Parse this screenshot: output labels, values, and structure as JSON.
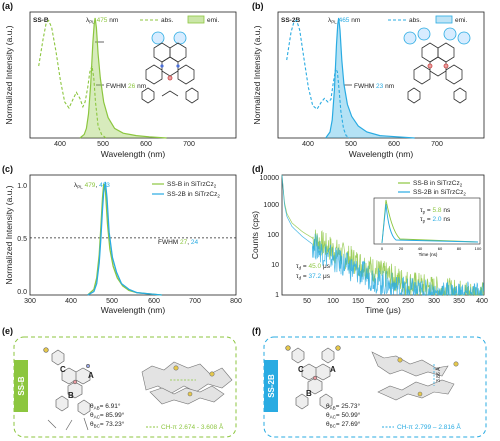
{
  "colors": {
    "green": "#8cc63f",
    "blue": "#29abe2",
    "teal": "#1fa2a6",
    "dark": "#222222"
  },
  "icons": [
    "molecule-structure-icon",
    "crystal-packing-icon"
  ],
  "chart_data": [
    {
      "panel": "(a)",
      "type": "line",
      "sample": "SS-B",
      "lambda_pre": "λ",
      "lambda_sub": "PL",
      "lambda_value": "475",
      "lambda_unit": "nm",
      "fwhm_pre": "FWHM",
      "fwhm_value": "26",
      "fwhm_unit": "nm",
      "legend": [
        "abs.",
        "emi."
      ],
      "xlabel": "Wavelength (nm)",
      "ylabel": "Normalized Intensity (a.u.)",
      "xlim": [
        325,
        800
      ],
      "ylim": [
        0,
        1.05
      ],
      "xticks": [
        "400",
        "500",
        "600",
        "700"
      ],
      "series": [
        {
          "name": "abs.",
          "style": "dashed",
          "x": [
            345,
            355,
            362,
            368,
            375,
            385,
            395,
            405,
            415,
            425,
            432,
            440,
            447,
            452,
            458,
            463,
            468,
            472,
            476,
            482,
            490,
            500
          ],
          "y": [
            0.6,
            0.82,
            0.95,
            0.98,
            0.92,
            0.72,
            0.48,
            0.3,
            0.25,
            0.33,
            0.38,
            0.33,
            0.26,
            0.3,
            0.42,
            0.55,
            0.6,
            0.5,
            0.3,
            0.1,
            0.03,
            0.0
          ]
        },
        {
          "name": "emi.",
          "style": "filled",
          "x": [
            440,
            450,
            455,
            460,
            465,
            470,
            473,
            475,
            478,
            482,
            487,
            495,
            505,
            520,
            540,
            570,
            600,
            640
          ],
          "y": [
            0.0,
            0.03,
            0.08,
            0.2,
            0.45,
            0.8,
            0.95,
            1.0,
            0.92,
            0.7,
            0.5,
            0.3,
            0.17,
            0.08,
            0.04,
            0.02,
            0.01,
            0.0
          ]
        }
      ]
    },
    {
      "panel": "(b)",
      "type": "line",
      "sample": "SS-2B",
      "lambda_pre": "λ",
      "lambda_sub": "PL",
      "lambda_value": "465",
      "lambda_unit": "nm",
      "fwhm_pre": "FWHM",
      "fwhm_value": "23",
      "fwhm_unit": "nm",
      "legend": [
        "abs.",
        "emi."
      ],
      "xlabel": "Wavelength (nm)",
      "ylabel": "Normalized Intensity (a.u.)",
      "xlim": [
        325,
        800
      ],
      "ylim": [
        0,
        1.05
      ],
      "xticks": [
        "400",
        "500",
        "600",
        "700"
      ],
      "series": [
        {
          "name": "abs.",
          "style": "dashed",
          "x": [
            345,
            355,
            362,
            368,
            375,
            385,
            395,
            405,
            415,
            425,
            432,
            440,
            447,
            452,
            458,
            462,
            466,
            470,
            476,
            482,
            490
          ],
          "y": [
            0.65,
            0.88,
            0.97,
            0.98,
            0.9,
            0.66,
            0.42,
            0.27,
            0.24,
            0.3,
            0.33,
            0.3,
            0.32,
            0.45,
            0.58,
            0.55,
            0.4,
            0.22,
            0.08,
            0.02,
            0.0
          ]
        },
        {
          "name": "emi.",
          "style": "filled",
          "x": [
            435,
            445,
            450,
            455,
            460,
            463,
            465,
            468,
            472,
            477,
            485,
            495,
            510,
            530,
            560,
            600,
            640
          ],
          "y": [
            0.0,
            0.05,
            0.15,
            0.4,
            0.78,
            0.95,
            1.0,
            0.9,
            0.65,
            0.45,
            0.28,
            0.18,
            0.1,
            0.05,
            0.02,
            0.01,
            0.0
          ]
        }
      ]
    },
    {
      "panel": "(c)",
      "type": "line",
      "lambda_pre": "λ",
      "lambda_sub": "PL",
      "lambda_values": [
        "479",
        "483"
      ],
      "fwhm_pre": "FWHM",
      "fwhm_values": [
        "27",
        "24"
      ],
      "legend_main": [
        "SS-B in SiTrzCz",
        "SS-2B in SiTrzCz"
      ],
      "legend_sub": "2",
      "xlabel": "Wavelength (nm)",
      "ylabel": "Normalized Intensity (a.u.)",
      "xlim": [
        300,
        800
      ],
      "ylim": [
        0,
        1.05
      ],
      "xticks": [
        "300",
        "400",
        "500",
        "600",
        "700",
        "800"
      ],
      "yticks": [
        "0.0",
        "0.5",
        "1.0"
      ],
      "half_max": 0.5,
      "series": [
        {
          "name": "SS-B in SiTrzCz2",
          "x": [
            440,
            455,
            462,
            468,
            472,
            476,
            479,
            483,
            488,
            494,
            502,
            512,
            525,
            540,
            560,
            590,
            620
          ],
          "y": [
            0.0,
            0.05,
            0.15,
            0.35,
            0.6,
            0.85,
            0.97,
            0.92,
            0.62,
            0.4,
            0.25,
            0.15,
            0.08,
            0.04,
            0.02,
            0.01,
            0.0
          ]
        },
        {
          "name": "SS-2B in SiTrzCz2",
          "x": [
            440,
            455,
            462,
            468,
            472,
            476,
            479,
            483,
            487,
            492,
            500,
            510,
            522,
            540,
            560,
            590,
            620
          ],
          "y": [
            0.0,
            0.03,
            0.1,
            0.28,
            0.5,
            0.75,
            0.9,
            0.99,
            0.85,
            0.55,
            0.33,
            0.2,
            0.1,
            0.05,
            0.02,
            0.01,
            0.0
          ]
        }
      ]
    },
    {
      "panel": "(d)",
      "type": "line",
      "yscale": "log",
      "legend_main": [
        "SS-B in SiTrzCz",
        "SS-2B in SiTrzCz"
      ],
      "legend_sub": "2",
      "tau_symbol": "τ",
      "tau_p_sub": "p",
      "tau_p": [
        "5.8",
        "2.0"
      ],
      "tau_p_unit": "ns",
      "tau_d_sub": "d",
      "tau_d": [
        "45.0",
        "37.2"
      ],
      "tau_d_unit": "μs",
      "xlabel": "Time (μs)",
      "ylabel": "Counts (cps)",
      "xlim": [
        0,
        400
      ],
      "ylim": [
        1,
        10000
      ],
      "xticks": [
        "50",
        "100",
        "150",
        "200",
        "250",
        "300",
        "350",
        "400"
      ],
      "yticks": [
        "1",
        "10",
        "100",
        "1000",
        "10000"
      ],
      "series": [
        {
          "name": "SS-B in SiTrzCz2",
          "x": [
            0,
            5,
            10,
            20,
            40,
            60,
            80,
            100,
            150,
            200,
            250,
            300,
            350,
            400
          ],
          "y": [
            10000,
            1200,
            500,
            250,
            130,
            80,
            50,
            32,
            12,
            5,
            2.5,
            1.6,
            1.2,
            1
          ]
        },
        {
          "name": "SS-2B in SiTrzCz2",
          "x": [
            0,
            5,
            10,
            20,
            40,
            60,
            80,
            100,
            150,
            200,
            250,
            300,
            350,
            400
          ],
          "y": [
            10000,
            1000,
            400,
            190,
            90,
            50,
            28,
            17,
            6,
            2.5,
            1.4,
            1.1,
            1,
            1
          ]
        }
      ],
      "inset": {
        "xlabel": "Time (ns)",
        "xticks": [
          "0",
          "20",
          "40",
          "60",
          "80",
          "100"
        ],
        "xlim": [
          0,
          100
        ]
      }
    },
    {
      "panel": "(e)",
      "type": "diagram",
      "sample": "SS-B",
      "ring_labels": [
        "C",
        "A",
        "B"
      ],
      "angles": [
        {
          "sym": "θ",
          "sub": "AB",
          "value": "= 6.91°"
        },
        {
          "sym": "θ",
          "sub": "AC",
          "value": "= 85.99°"
        },
        {
          "sym": "θ",
          "sub": "BC",
          "value": "= 73.23°"
        }
      ],
      "contact": "CH-π  2.674 - 3.608 Å"
    },
    {
      "panel": "(f)",
      "type": "diagram",
      "sample": "SS-2B",
      "ring_labels": [
        "C",
        "A",
        "B"
      ],
      "angles": [
        {
          "sym": "θ",
          "sub": "AB",
          "value": "= 25.73°"
        },
        {
          "sym": "θ",
          "sub": "AC",
          "value": "= 50.99°"
        },
        {
          "sym": "θ",
          "sub": "BC",
          "value": "= 27.69°"
        }
      ],
      "contact": "CH-π  2.799 – 2.816 Å",
      "distance": "3.86 Å"
    }
  ]
}
